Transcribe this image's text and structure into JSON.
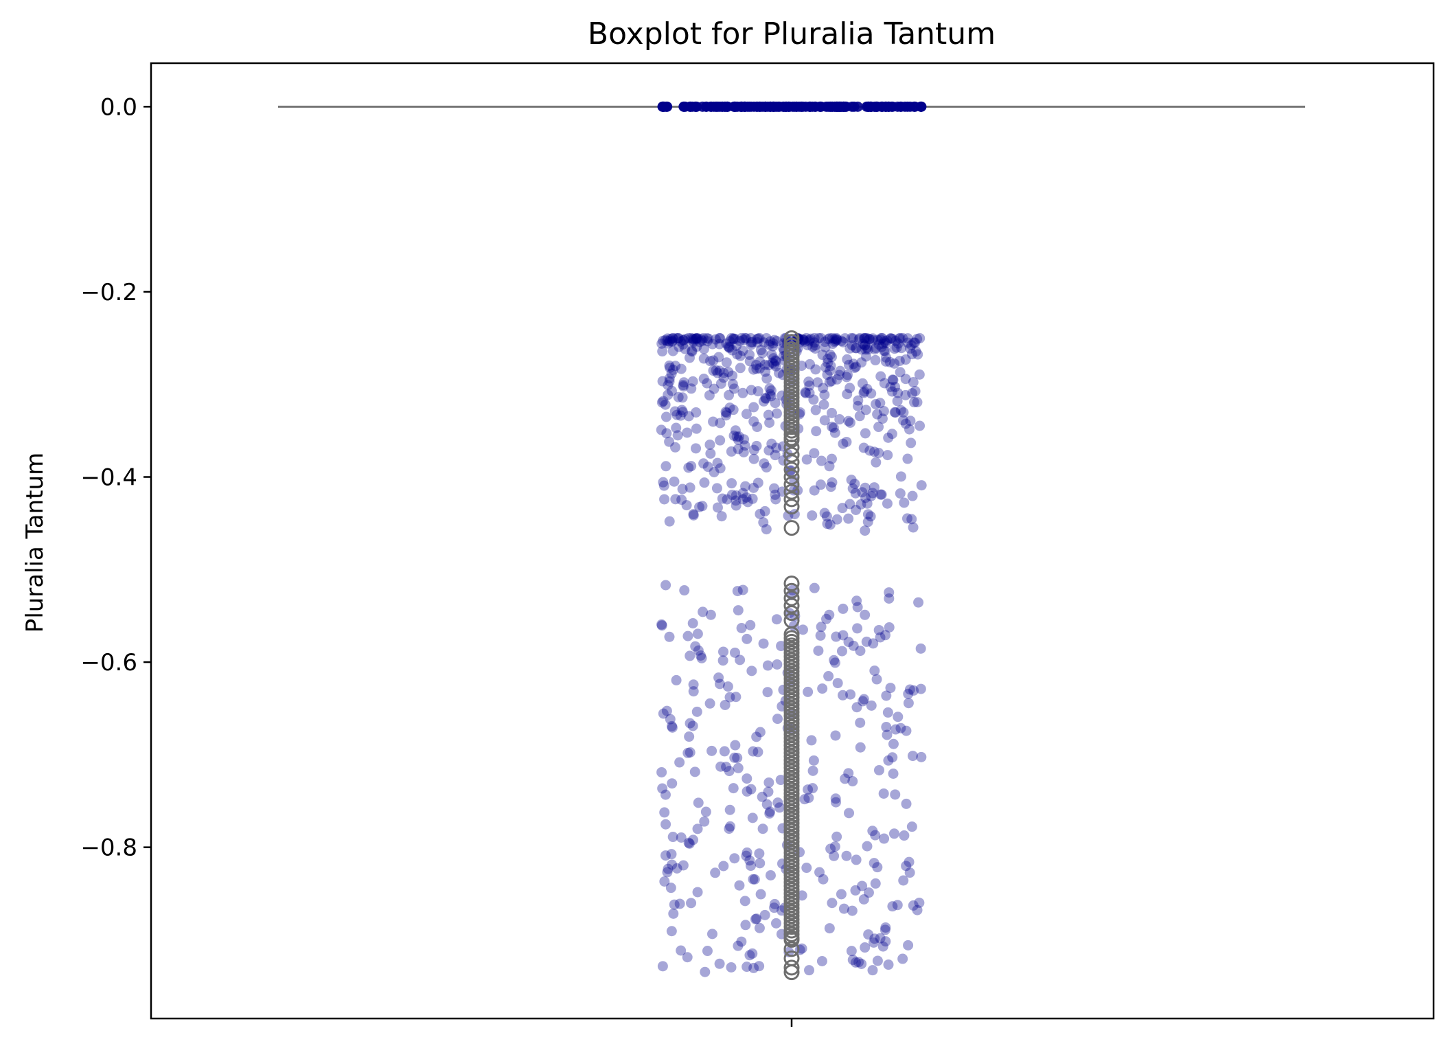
{
  "chart_data": {
    "type": "box",
    "title": "Boxplot for Pluralia Tantum",
    "ylabel": "Pluralia Tantum",
    "xlabel": "",
    "ylim": [
      -0.985,
      0.047
    ],
    "yticks": [
      0.0,
      -0.2,
      -0.4,
      -0.6,
      -0.8
    ],
    "ytick_labels": [
      "0.0",
      "−0.2",
      "−0.4",
      "−0.6",
      "−0.8"
    ],
    "grid": false,
    "box": {
      "q1": 0.0,
      "median": 0.0,
      "q3": 0.0,
      "whisker_low": 0.0,
      "whisker_high": 0.0
    },
    "outliers_range": [
      -0.935,
      -0.25
    ],
    "strip": {
      "color": "#00008B",
      "alpha": 0.35,
      "zero_band_value": 0.0,
      "upper_cluster": {
        "from": -0.25,
        "to": -0.46
      },
      "lower_cluster": {
        "from": -0.515,
        "to": -0.935
      }
    },
    "colors": {
      "box_line": "#777777",
      "strip_points": "#00008B",
      "outlier_edge": "#6e6e6e"
    }
  }
}
